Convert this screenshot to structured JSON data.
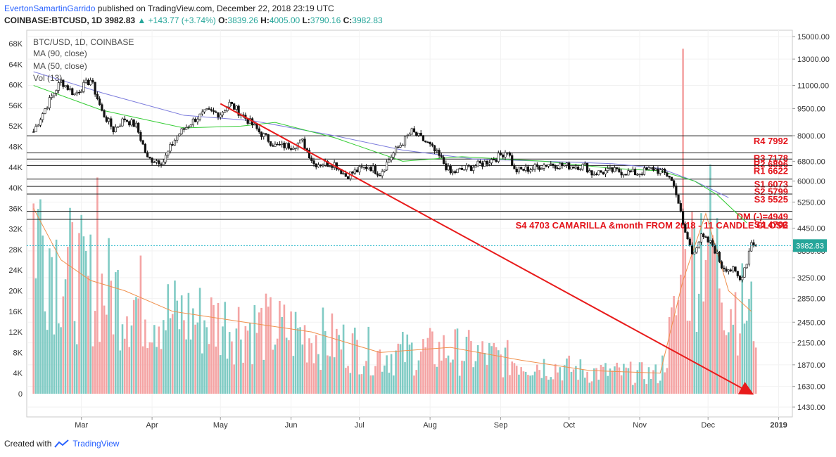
{
  "header": {
    "author": "EvertonSamartinGarrido",
    "published": "published on TradingView.com, December 22, 2018 23:19 UTC",
    "symbol": "COINBASE:BTCUSD, 1D",
    "last": "3982.83",
    "change_arrow": "▲",
    "change": "+143.77 (+3.74%)",
    "o_label": "O:",
    "o_value": "3839.26",
    "h_label": "H:",
    "h_value": "4005.00",
    "l_label": "L:",
    "l_value": "3790.16",
    "c_label": "C:",
    "c_value": "3982.83"
  },
  "legend": {
    "line1": "BTC/USD, 1D, COINBASE",
    "line2": "MA (90, close)",
    "line3": "MA (50, close)",
    "line4": "Vol (13)"
  },
  "footer": {
    "created_with": "Created with",
    "brand": "TradingView",
    "logo_icon": "tradingview-logo-icon"
  },
  "colors": {
    "up": "#26a69a",
    "down": "#ef5350",
    "vol_up": "#80cbc4",
    "vol_down": "#f4a4a4",
    "ma90": "#7b7bdc",
    "ma50": "#33cc33",
    "vol_ma": "#f0904c",
    "price_line": "#1fb5c8",
    "trend": "#e81b1b",
    "level_text": "#e3141b"
  },
  "chart_data": {
    "type": "candlestick",
    "title": "BTC/USD, 1D, COINBASE",
    "price_axis": {
      "scale": "log",
      "ticks": [
        "15000.00",
        "13000.00",
        "11000.00",
        "9500.00",
        "8000.00",
        "6800.00",
        "6000.00",
        "5250.00",
        "4450.00",
        "3850.00",
        "3250.00",
        "2850.00",
        "2450.00",
        "2150.00",
        "1870.00",
        "1630.00",
        "1430.00"
      ]
    },
    "volume_axis": {
      "ticks": [
        "68K",
        "64K",
        "60K",
        "56K",
        "52K",
        "48K",
        "44K",
        "40K",
        "36K",
        "32K",
        "28K",
        "24K",
        "20K",
        "16K",
        "12K",
        "8K",
        "4K",
        "0"
      ]
    },
    "x_ticks": [
      "Mar",
      "Apr",
      "May",
      "Jun",
      "Jul",
      "Aug",
      "Sep",
      "Oct",
      "Nov",
      "Dec",
      "2019"
    ],
    "last_price": "3982.83",
    "levels": [
      {
        "label": "R4 7992",
        "price": 7992
      },
      {
        "label": "R3 7178",
        "price": 7178
      },
      {
        "label": "R2 6896",
        "price": 6896
      },
      {
        "label": "R1 6622",
        "price": 6622
      },
      {
        "label": "S1 6073",
        "price": 6073
      },
      {
        "label": "S2 5799",
        "price": 5799
      },
      {
        "label": "S3 5525",
        "price": 5525
      },
      {
        "label": "DM (-)=4949",
        "price": 4949
      },
      {
        "label": "S4 4703",
        "price": 4703
      }
    ],
    "annotation": "S4   4703  CAMARILLA  &month FROM   2018 - 11     CANDLE CLOSE",
    "trendline": {
      "from": {
        "date": "2018-05-01",
        "price": 9800
      },
      "to": {
        "date": "2018-12-20",
        "price": 1560
      }
    },
    "price_path": [
      [
        "2018-02-08",
        8200
      ],
      [
        "2018-02-15",
        10000
      ],
      [
        "2018-02-20",
        11300
      ],
      [
        "2018-02-26",
        10400
      ],
      [
        "2018-03-05",
        11400
      ],
      [
        "2018-03-10",
        9300
      ],
      [
        "2018-03-15",
        8300
      ],
      [
        "2018-03-20",
        8900
      ],
      [
        "2018-03-25",
        8500
      ],
      [
        "2018-03-30",
        6900
      ],
      [
        "2018-04-06",
        6800
      ],
      [
        "2018-04-12",
        8000
      ],
      [
        "2018-04-20",
        8900
      ],
      [
        "2018-04-25",
        9300
      ],
      [
        "2018-05-01",
        9200
      ],
      [
        "2018-05-05",
        9800
      ],
      [
        "2018-05-10",
        9200
      ],
      [
        "2018-05-18",
        8200
      ],
      [
        "2018-05-25",
        7500
      ],
      [
        "2018-06-01",
        7500
      ],
      [
        "2018-06-06",
        7700
      ],
      [
        "2018-06-11",
        6700
      ],
      [
        "2018-06-20",
        6700
      ],
      [
        "2018-06-25",
        6200
      ],
      [
        "2018-06-30",
        6400
      ],
      [
        "2018-07-05",
        6600
      ],
      [
        "2018-07-10",
        6300
      ],
      [
        "2018-07-17",
        7300
      ],
      [
        "2018-07-24",
        8200
      ],
      [
        "2018-07-31",
        7600
      ],
      [
        "2018-08-05",
        7000
      ],
      [
        "2018-08-10",
        6300
      ],
      [
        "2018-08-17",
        6500
      ],
      [
        "2018-08-24",
        6700
      ],
      [
        "2018-08-31",
        7000
      ],
      [
        "2018-09-04",
        7300
      ],
      [
        "2018-09-07",
        6400
      ],
      [
        "2018-09-15",
        6500
      ],
      [
        "2018-09-22",
        6700
      ],
      [
        "2018-09-30",
        6600
      ],
      [
        "2018-10-08",
        6600
      ],
      [
        "2018-10-11",
        6300
      ],
      [
        "2018-10-20",
        6400
      ],
      [
        "2018-10-31",
        6300
      ],
      [
        "2018-11-07",
        6500
      ],
      [
        "2018-11-14",
        6200
      ],
      [
        "2018-11-17",
        5600
      ],
      [
        "2018-11-20",
        4500
      ],
      [
        "2018-11-24",
        3800
      ],
      [
        "2018-11-28",
        4200
      ],
      [
        "2018-12-03",
        4000
      ],
      [
        "2018-12-07",
        3500
      ],
      [
        "2018-12-12",
        3400
      ],
      [
        "2018-12-15",
        3200
      ],
      [
        "2018-12-18",
        3600
      ],
      [
        "2018-12-20",
        4100
      ],
      [
        "2018-12-22",
        3983
      ]
    ],
    "ma90_path": [
      [
        "2018-02-08",
        12000
      ],
      [
        "2018-03-10",
        10500
      ],
      [
        "2018-04-15",
        9100
      ],
      [
        "2018-05-15",
        8800
      ],
      [
        "2018-06-20",
        8000
      ],
      [
        "2018-07-20",
        7300
      ],
      [
        "2018-08-20",
        6900
      ],
      [
        "2018-09-20",
        6800
      ],
      [
        "2018-10-20",
        6700
      ],
      [
        "2018-11-10",
        6500
      ],
      [
        "2018-11-25",
        6000
      ],
      [
        "2018-12-10",
        5400
      ]
    ],
    "ma50_path": [
      [
        "2018-02-08",
        11000
      ],
      [
        "2018-03-10",
        9400
      ],
      [
        "2018-04-15",
        8400
      ],
      [
        "2018-05-10",
        8500
      ],
      [
        "2018-05-25",
        8700
      ],
      [
        "2018-06-20",
        7900
      ],
      [
        "2018-07-20",
        6800
      ],
      [
        "2018-08-15",
        7000
      ],
      [
        "2018-09-20",
        6800
      ],
      [
        "2018-10-20",
        6500
      ],
      [
        "2018-11-10",
        6400
      ],
      [
        "2018-11-25",
        6000
      ],
      [
        "2018-12-05",
        5500
      ],
      [
        "2018-12-18",
        4600
      ]
    ],
    "volume_ma13_path": [
      [
        "2018-02-08",
        36000
      ],
      [
        "2018-02-20",
        26000
      ],
      [
        "2018-03-05",
        22000
      ],
      [
        "2018-03-20",
        20000
      ],
      [
        "2018-04-10",
        16000
      ],
      [
        "2018-05-10",
        14000
      ],
      [
        "2018-06-10",
        12000
      ],
      [
        "2018-07-10",
        8000
      ],
      [
        "2018-08-10",
        9000
      ],
      [
        "2018-09-10",
        6500
      ],
      [
        "2018-10-10",
        4500
      ],
      [
        "2018-11-10",
        4000
      ],
      [
        "2018-11-20",
        22000
      ],
      [
        "2018-11-30",
        35000
      ],
      [
        "2018-12-10",
        20000
      ],
      [
        "2018-12-20",
        16000
      ]
    ],
    "volume_spikes": [
      {
        "date": "2018-03-08",
        "value": 42000
      },
      {
        "date": "2018-11-20",
        "value": 67000
      }
    ]
  }
}
